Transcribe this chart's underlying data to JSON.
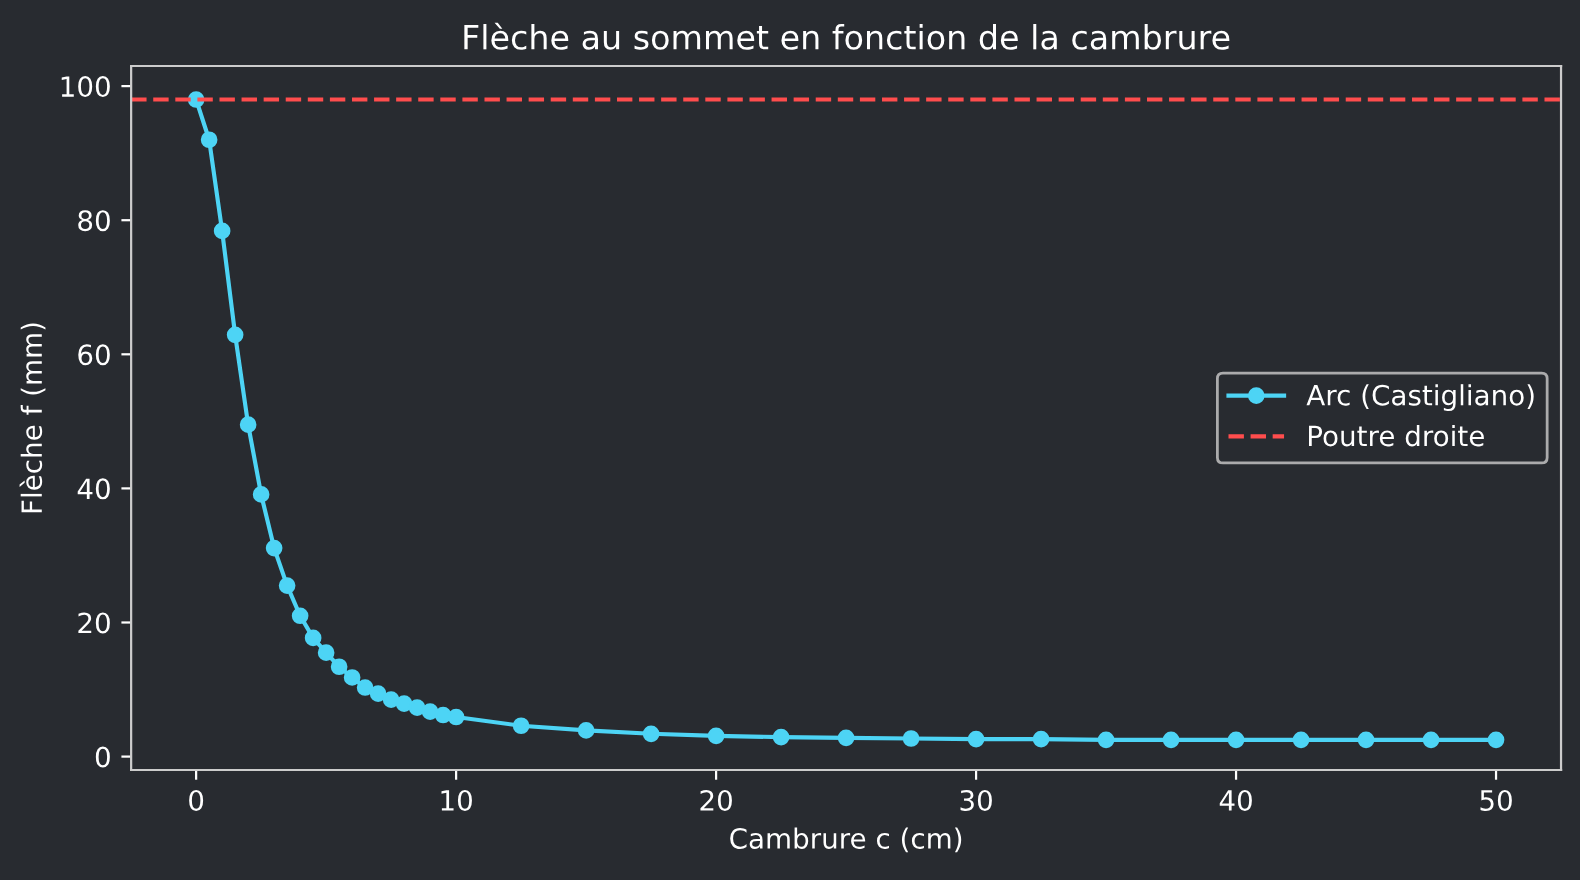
{
  "chart_data": {
    "type": "line",
    "title": "Flèche au sommet en fonction de la cambrure",
    "xlabel": "Cambrure c (cm)",
    "ylabel": "Flèche f (mm)",
    "series": [
      {
        "name": "Arc (Castigliano)",
        "color": "#4dd4f5",
        "x": [
          0,
          0.5,
          1,
          1.5,
          2,
          2.5,
          3,
          3.5,
          4,
          4.5,
          5,
          5.5,
          6,
          6.5,
          7,
          7.5,
          8,
          8.5,
          9,
          9.5,
          10,
          12.5,
          15,
          17.5,
          20,
          22.5,
          25,
          27.5,
          30,
          32.5,
          35,
          37.5,
          40,
          42.5,
          45,
          47.5,
          50
        ],
        "values": [
          98,
          92,
          78.4,
          62.9,
          49.5,
          39.1,
          31.1,
          25.5,
          21,
          17.7,
          15.5,
          13.4,
          11.8,
          10.3,
          9.4,
          8.5,
          7.9,
          7.3,
          6.7,
          6.2,
          5.9,
          4.6,
          3.9,
          3.4,
          3.1,
          2.9,
          2.8,
          2.7,
          2.6,
          2.6,
          2.5,
          2.5,
          2.5,
          2.5,
          2.5,
          2.5,
          2.5
        ]
      }
    ],
    "ref_lines": [
      {
        "axis": "y",
        "value": 98,
        "label": "Poutre droite",
        "color": "#ff4d4d",
        "line_style": "dashed"
      }
    ],
    "xlim": [
      -2.5,
      52.5
    ],
    "ylim": [
      -2,
      103
    ],
    "xticks": [
      0,
      10,
      20,
      30,
      40,
      50
    ],
    "yticks": [
      0,
      20,
      40,
      60,
      80,
      100
    ],
    "grid": false,
    "legend": "right",
    "marker": "circle",
    "line_style": "solid"
  }
}
